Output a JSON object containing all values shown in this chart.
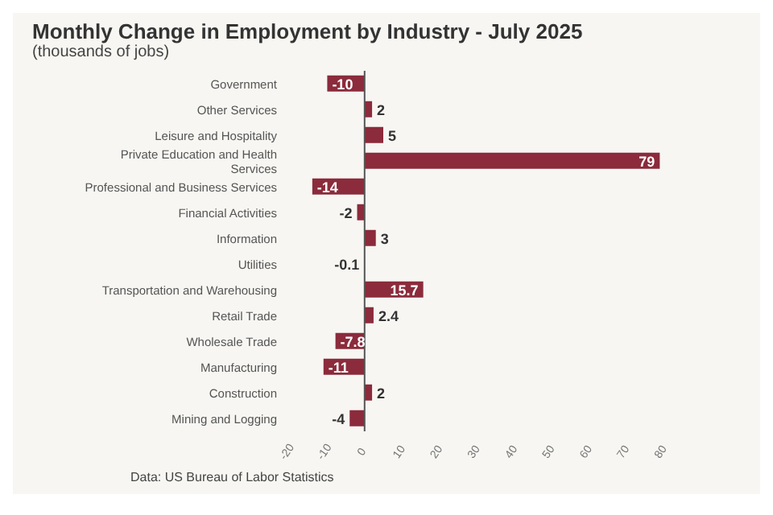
{
  "chart_data": {
    "type": "bar",
    "orientation": "horizontal",
    "title": "Monthly Change in Employment by Industry - July 2025",
    "subtitle": "(thousands of jobs)",
    "categories": [
      "Government",
      "Other Services",
      "Leisure and Hospitality",
      "Private Education and Health Services",
      "Professional and Business Services",
      "Financial Activities",
      "Information",
      "Utilities",
      "Transportation and Warehousing",
      "Retail Trade",
      "Wholesale Trade",
      "Manufacturing",
      "Construction",
      "Mining and Logging"
    ],
    "values": [
      -10,
      2,
      5,
      79,
      -14,
      -2,
      3,
      -0.1,
      15.7,
      2.4,
      -7.8,
      -11,
      2,
      -4
    ],
    "color": "#8b2b3b",
    "data_labels": true,
    "xlim": [
      -20,
      80
    ],
    "xticks": [
      -20,
      -10,
      0,
      10,
      20,
      30,
      40,
      50,
      60,
      70,
      80
    ],
    "grid": false,
    "ref_lines": [
      {
        "axis": "x",
        "value": 0,
        "color": "#555555"
      }
    ],
    "annotations": [
      "Data: US Bureau of Labor Statistics"
    ]
  }
}
